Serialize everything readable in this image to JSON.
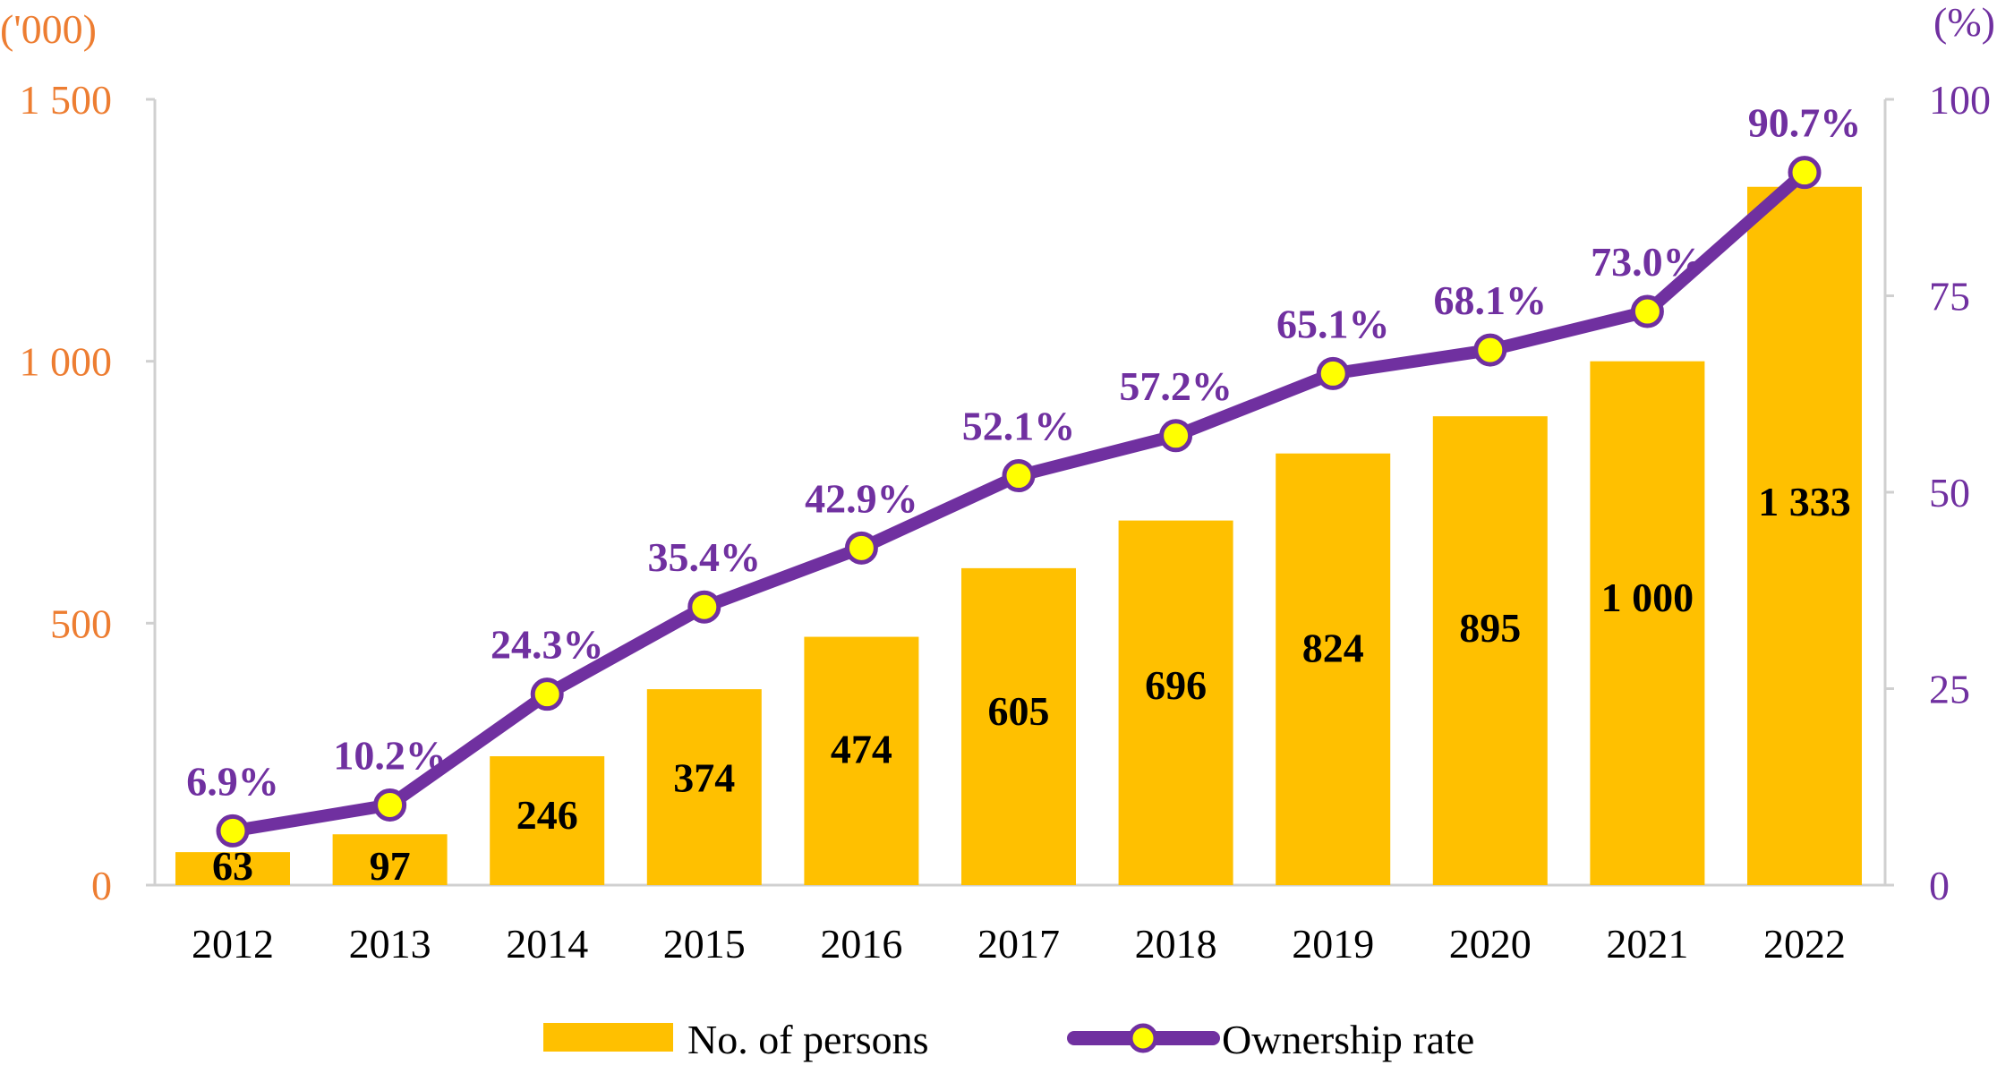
{
  "chart_data": {
    "type": "bar+line",
    "categories": [
      "2012",
      "2013",
      "2014",
      "2015",
      "2016",
      "2017",
      "2018",
      "2019",
      "2020",
      "2021",
      "2022"
    ],
    "series": [
      {
        "name": "No. of persons",
        "type": "bar",
        "axis": "left",
        "color": "#FFC000",
        "values": [
          63,
          97,
          246,
          374,
          474,
          605,
          696,
          824,
          895,
          1000,
          1333
        ],
        "labels": [
          "63",
          "97",
          "246",
          "374",
          "474",
          "605",
          "696",
          "824",
          "895",
          "1 000",
          "1 333"
        ]
      },
      {
        "name": "Ownership rate",
        "type": "line",
        "axis": "right",
        "color": "#7030A0",
        "marker_color": "#FFFF00",
        "values": [
          6.9,
          10.2,
          24.3,
          35.4,
          42.9,
          52.1,
          57.2,
          65.1,
          68.1,
          73.0,
          90.7
        ],
        "labels": [
          "6.9%",
          "10.2%",
          "24.3%",
          "35.4%",
          "42.9%",
          "52.1%",
          "57.2%",
          "65.1%",
          "68.1%",
          "73.0%",
          "90.7%"
        ]
      }
    ],
    "left_axis": {
      "unit": "('000)",
      "range": [
        0,
        1500
      ],
      "ticks": [
        0,
        500,
        1000,
        1500
      ],
      "tick_labels": [
        "0",
        "500",
        "1 000",
        "1 500"
      ],
      "color": "#ED7D31"
    },
    "right_axis": {
      "unit": "(%)",
      "range": [
        0,
        100
      ],
      "ticks": [
        0,
        25,
        50,
        75,
        100
      ],
      "tick_labels": [
        "0",
        "25",
        "50",
        "75",
        "100"
      ],
      "color": "#7030A0"
    },
    "grid": false,
    "legend": {
      "position": "bottom",
      "items": [
        "No. of persons",
        "Ownership rate"
      ]
    }
  }
}
